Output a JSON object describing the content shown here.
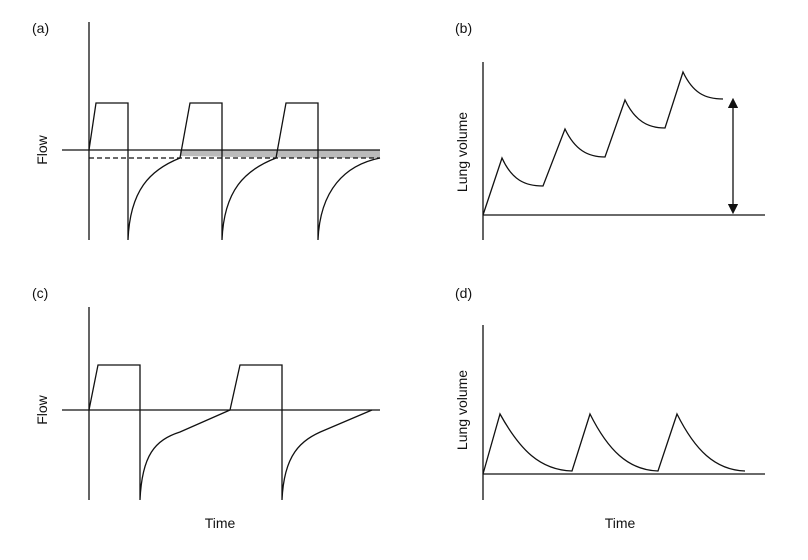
{
  "panels": [
    {
      "label": "(a)",
      "y_label": "Flow"
    },
    {
      "label": "(b)",
      "y_label": "Lung volume"
    },
    {
      "label": "(c)",
      "y_label": "Flow",
      "x_label": "Time"
    },
    {
      "label": "(d)",
      "y_label": "Lung volume",
      "x_label": "Time"
    }
  ]
}
